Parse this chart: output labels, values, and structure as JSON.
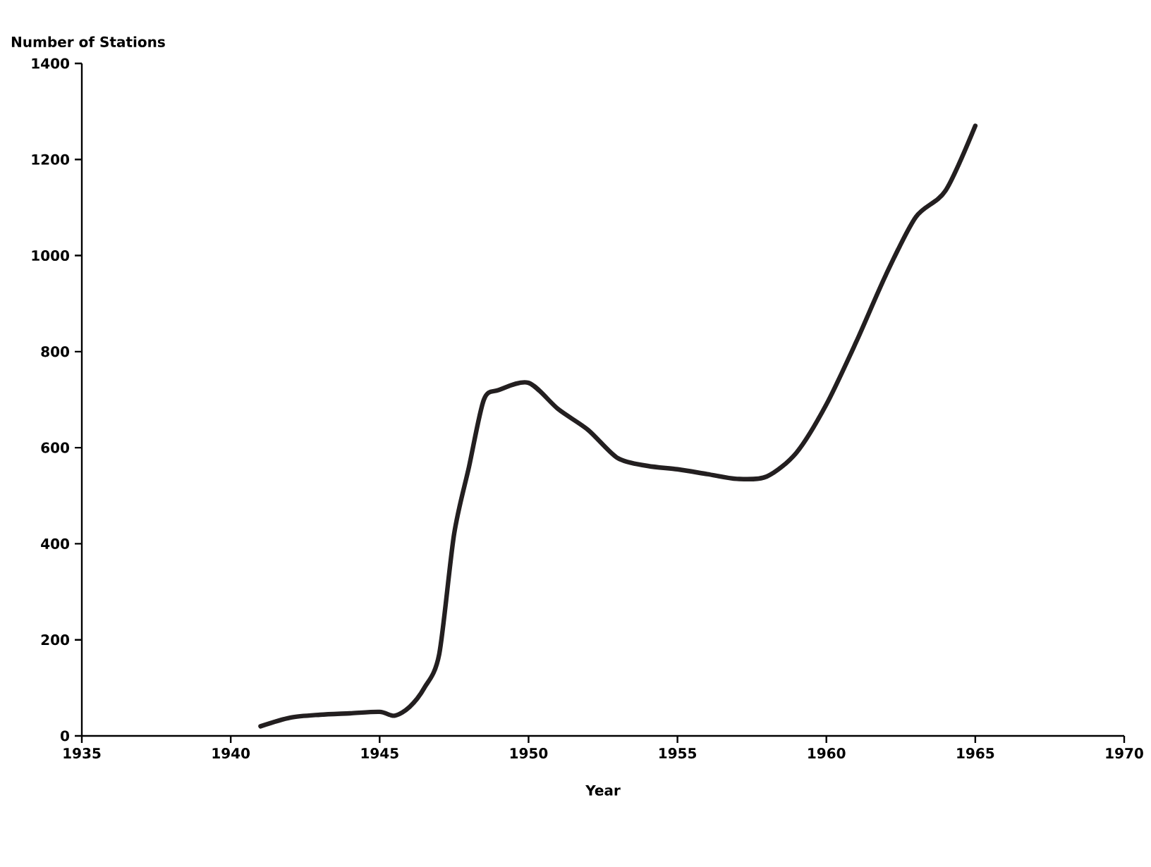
{
  "chart_data": {
    "type": "line",
    "xlabel": "Year",
    "ylabel": "Number of Stations",
    "x": [
      1941,
      1942,
      1943,
      1944,
      1945,
      1945.5,
      1946,
      1946.5,
      1947,
      1947.5,
      1948,
      1948.5,
      1949,
      1950,
      1951,
      1952,
      1953,
      1954,
      1955,
      1956,
      1957,
      1958,
      1959,
      1960,
      1961,
      1962,
      1963,
      1964,
      1965
    ],
    "series": [
      {
        "color": "#231f20",
        "values": [
          20,
          38,
          44,
          47,
          50,
          42,
          60,
          100,
          170,
          420,
          560,
          700,
          720,
          735,
          680,
          637,
          578,
          562,
          555,
          545,
          535,
          540,
          590,
          690,
          820,
          960,
          1080,
          1135,
          1270
        ]
      }
    ],
    "xlim": [
      1935,
      1970
    ],
    "xticks": [
      1935,
      1940,
      1945,
      1950,
      1955,
      1960,
      1965,
      1970
    ],
    "ylim": [
      0,
      1400
    ],
    "yticks": [
      0,
      200,
      400,
      600,
      800,
      1000,
      1200,
      1400
    ],
    "marker": "none",
    "line_style": "solid"
  }
}
